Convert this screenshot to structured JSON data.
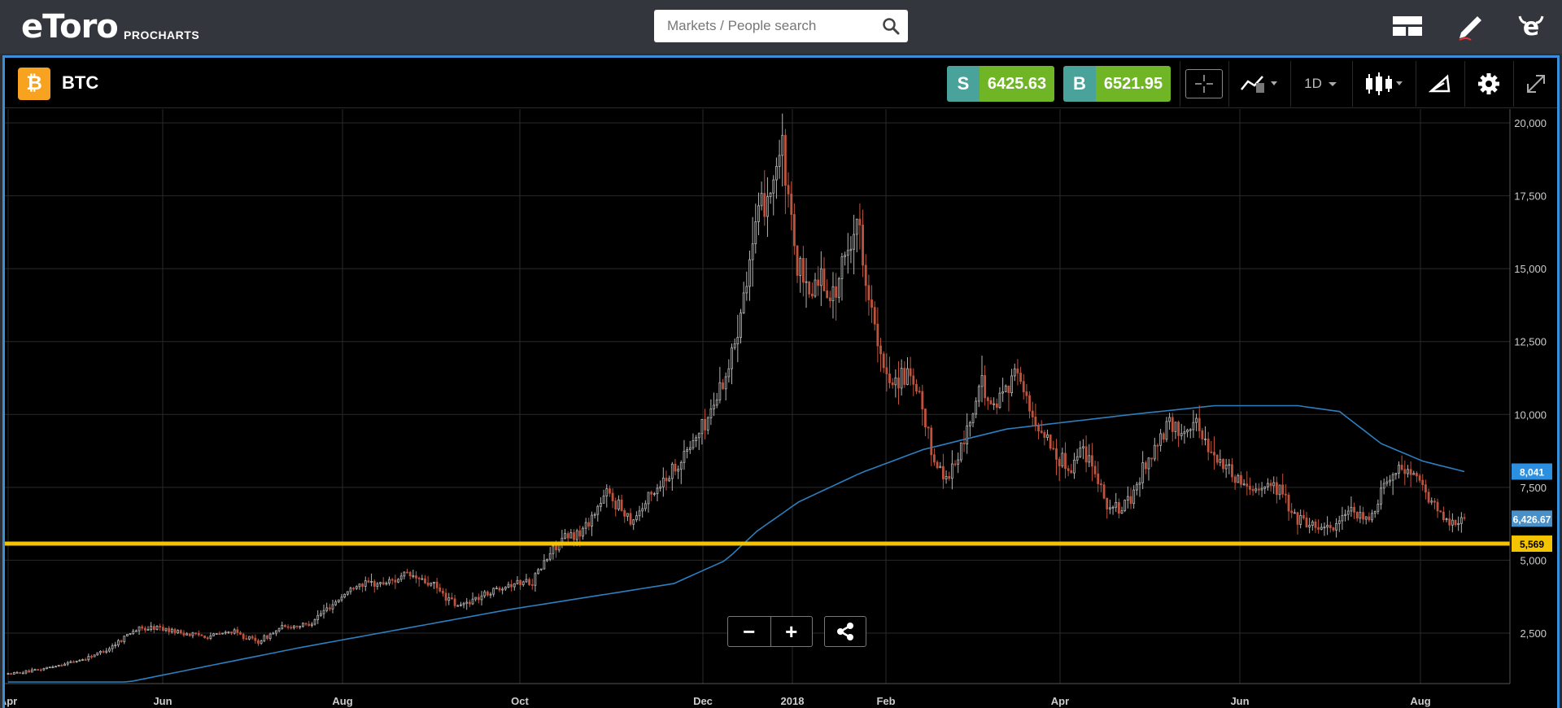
{
  "header": {
    "logo_text": "eToro",
    "logo_sub": "PROCHARTS",
    "search_placeholder": "Markets / People search"
  },
  "instrument": {
    "symbol": "BTC",
    "coin_glyph": "₿",
    "sell_label": "S",
    "sell_price": "6425.63",
    "buy_label": "B",
    "buy_price": "6521.95"
  },
  "toolbar": {
    "interval": "1D"
  },
  "colors": {
    "accent_blue": "#3b8fd9",
    "bitcoin_orange": "#f7a320",
    "sell_teal": "#4aa39b",
    "price_green": "#6fb526",
    "support_yellow": "#f5c400",
    "ma_line": "#2d7fc0",
    "up_candle": "#b4b4b4",
    "down_candle": "#c0533c"
  },
  "chart_data": {
    "type": "candlestick",
    "x_ticks": [
      "Apr",
      "Jun",
      "Aug",
      "Oct",
      "Dec",
      "2018",
      "Feb",
      "Apr",
      "Jun",
      "Aug"
    ],
    "y_ticks": [
      "2,500",
      "5,000",
      "7,500",
      "10,000",
      "12,500",
      "15,000",
      "17,500",
      "20,000"
    ],
    "ylim": [
      0,
      20500
    ],
    "price_labels": {
      "moving_average": "8,041",
      "current": "6,426.67",
      "support": "5,569"
    },
    "support_level": 5569,
    "close_path": [
      [
        0,
        1100
      ],
      [
        12,
        1200
      ],
      [
        24,
        1400
      ],
      [
        36,
        1600
      ],
      [
        48,
        1950
      ],
      [
        60,
        2600
      ],
      [
        72,
        2700
      ],
      [
        84,
        2500
      ],
      [
        96,
        2400
      ],
      [
        108,
        2550
      ],
      [
        120,
        2200
      ],
      [
        132,
        2700
      ],
      [
        144,
        2800
      ],
      [
        156,
        3500
      ],
      [
        168,
        4200
      ],
      [
        180,
        4200
      ],
      [
        192,
        4500
      ],
      [
        204,
        4150
      ],
      [
        216,
        3400
      ],
      [
        228,
        3800
      ],
      [
        240,
        4200
      ],
      [
        252,
        4300
      ],
      [
        264,
        5600
      ],
      [
        276,
        6000
      ],
      [
        288,
        7300
      ],
      [
        300,
        6400
      ],
      [
        312,
        7500
      ],
      [
        324,
        8500
      ],
      [
        336,
        9800
      ],
      [
        348,
        12000
      ],
      [
        354,
        14500
      ],
      [
        360,
        16500
      ],
      [
        366,
        17800
      ],
      [
        372,
        19100
      ],
      [
        378,
        15500
      ],
      [
        384,
        14000
      ],
      [
        390,
        14800
      ],
      [
        396,
        14000
      ],
      [
        402,
        15200
      ],
      [
        408,
        16800
      ],
      [
        414,
        14000
      ],
      [
        420,
        11500
      ],
      [
        426,
        11200
      ],
      [
        432,
        11300
      ],
      [
        438,
        10500
      ],
      [
        444,
        8700
      ],
      [
        450,
        7800
      ],
      [
        456,
        8400
      ],
      [
        462,
        9700
      ],
      [
        468,
        11000
      ],
      [
        474,
        10200
      ],
      [
        480,
        11100
      ],
      [
        486,
        11500
      ],
      [
        492,
        9800
      ],
      [
        498,
        9400
      ],
      [
        504,
        8600
      ],
      [
        510,
        8100
      ],
      [
        516,
        8900
      ],
      [
        522,
        8300
      ],
      [
        528,
        6900
      ],
      [
        534,
        6700
      ],
      [
        540,
        7100
      ],
      [
        546,
        8200
      ],
      [
        552,
        8900
      ],
      [
        558,
        9600
      ],
      [
        564,
        9400
      ],
      [
        570,
        9800
      ],
      [
        576,
        9000
      ],
      [
        582,
        8400
      ],
      [
        588,
        8000
      ],
      [
        594,
        7600
      ],
      [
        600,
        7500
      ],
      [
        606,
        7600
      ],
      [
        612,
        7400
      ],
      [
        618,
        6500
      ],
      [
        624,
        6300
      ],
      [
        630,
        6200
      ],
      [
        636,
        6100
      ],
      [
        642,
        6500
      ],
      [
        648,
        6600
      ],
      [
        654,
        6300
      ],
      [
        660,
        7400
      ],
      [
        666,
        8200
      ],
      [
        672,
        8100
      ],
      [
        678,
        7700
      ],
      [
        684,
        7000
      ],
      [
        690,
        6400
      ],
      [
        696,
        6350
      ],
      [
        700,
        6426
      ]
    ],
    "moving_average_path": [
      [
        0,
        0
      ],
      [
        140,
        2000
      ],
      [
        240,
        3300
      ],
      [
        320,
        4200
      ],
      [
        345,
        5000
      ],
      [
        360,
        6000
      ],
      [
        380,
        7000
      ],
      [
        410,
        8000
      ],
      [
        440,
        8800
      ],
      [
        480,
        9500
      ],
      [
        540,
        10000
      ],
      [
        580,
        10300
      ],
      [
        620,
        10300
      ],
      [
        640,
        10100
      ],
      [
        660,
        9000
      ],
      [
        680,
        8400
      ],
      [
        700,
        8041
      ]
    ]
  }
}
